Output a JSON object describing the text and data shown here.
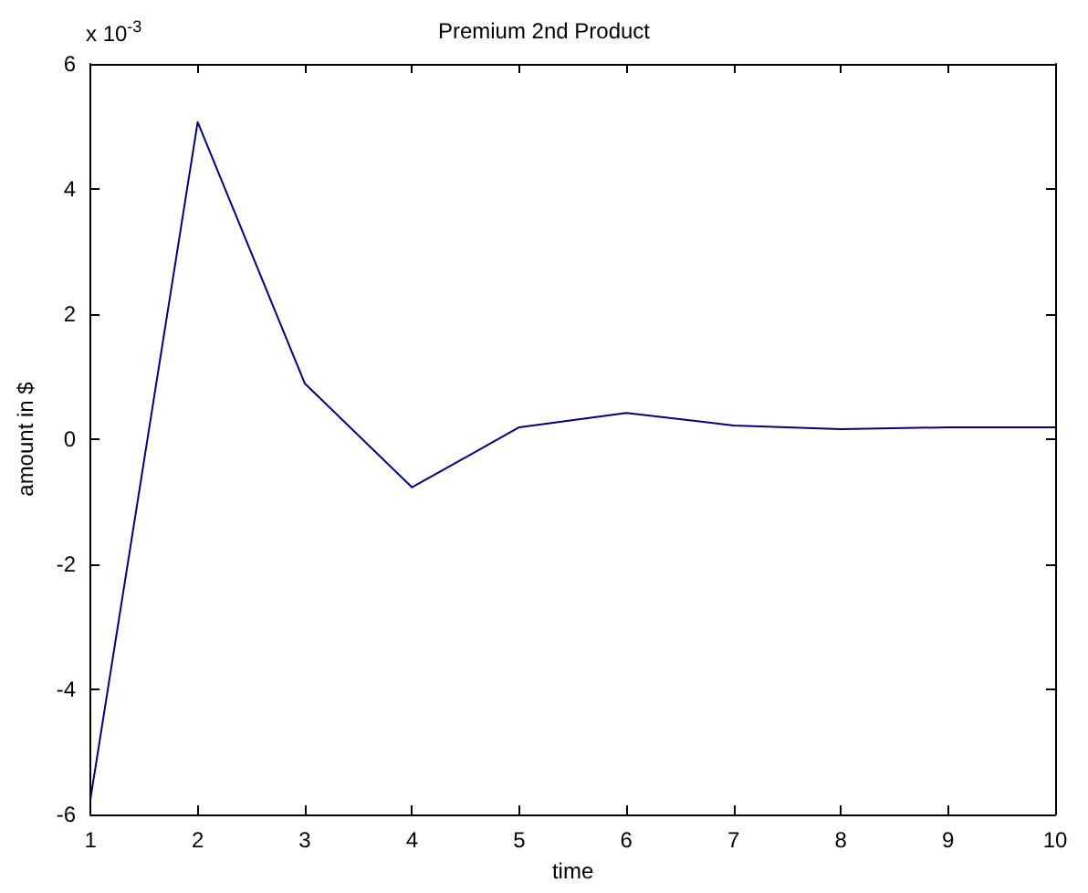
{
  "chart_data": {
    "type": "line",
    "title": "Premium 2nd Product",
    "xlabel": "time",
    "ylabel": "amount in $",
    "annotations": [
      "x 10$^{-3}$"
    ],
    "x": [
      1,
      2,
      3,
      4,
      5,
      6,
      7,
      8,
      9,
      10
    ],
    "series": [
      {
        "color": "#000080",
        "values": [
          -5.75,
          5.07,
          0.89,
          -0.77,
          0.19,
          0.42,
          0.22,
          0.16,
          0.19,
          0.19
        ]
      }
    ],
    "xlim": [
      1,
      10
    ],
    "xticks": [
      1,
      2,
      3,
      4,
      5,
      6,
      7,
      8,
      9,
      10
    ],
    "ylim": [
      -6,
      6
    ],
    "yticks": [
      -6,
      -4,
      -2,
      0,
      2,
      4,
      6
    ],
    "grid": false,
    "marker": "none",
    "line_style": "solid"
  }
}
